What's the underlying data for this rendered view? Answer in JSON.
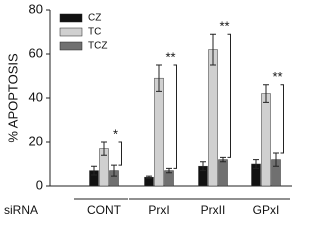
{
  "chart_data": {
    "type": "bar",
    "y_label": "% APOPTOSIS",
    "x_label": "siRNA",
    "categories": [
      "CONT",
      "PrxI",
      "PrxII",
      "GPxI"
    ],
    "series": [
      {
        "name": "CZ",
        "color": "#111111",
        "values": [
          7,
          4,
          9,
          10
        ],
        "errors": [
          2,
          0.5,
          2,
          2
        ]
      },
      {
        "name": "TC",
        "color": "#d0d0d0",
        "values": [
          17,
          49,
          62,
          42
        ],
        "errors": [
          3,
          6,
          7,
          4
        ]
      },
      {
        "name": "TCZ",
        "color": "#707070",
        "values": [
          7,
          7,
          12,
          12
        ],
        "errors": [
          2.5,
          1,
          1,
          3
        ]
      }
    ],
    "significance": [
      "*",
      "**",
      "**",
      "**"
    ],
    "ylim": [
      0,
      80
    ],
    "yticks": [
      0,
      20,
      40,
      60,
      80
    ],
    "legend": "upper left"
  }
}
